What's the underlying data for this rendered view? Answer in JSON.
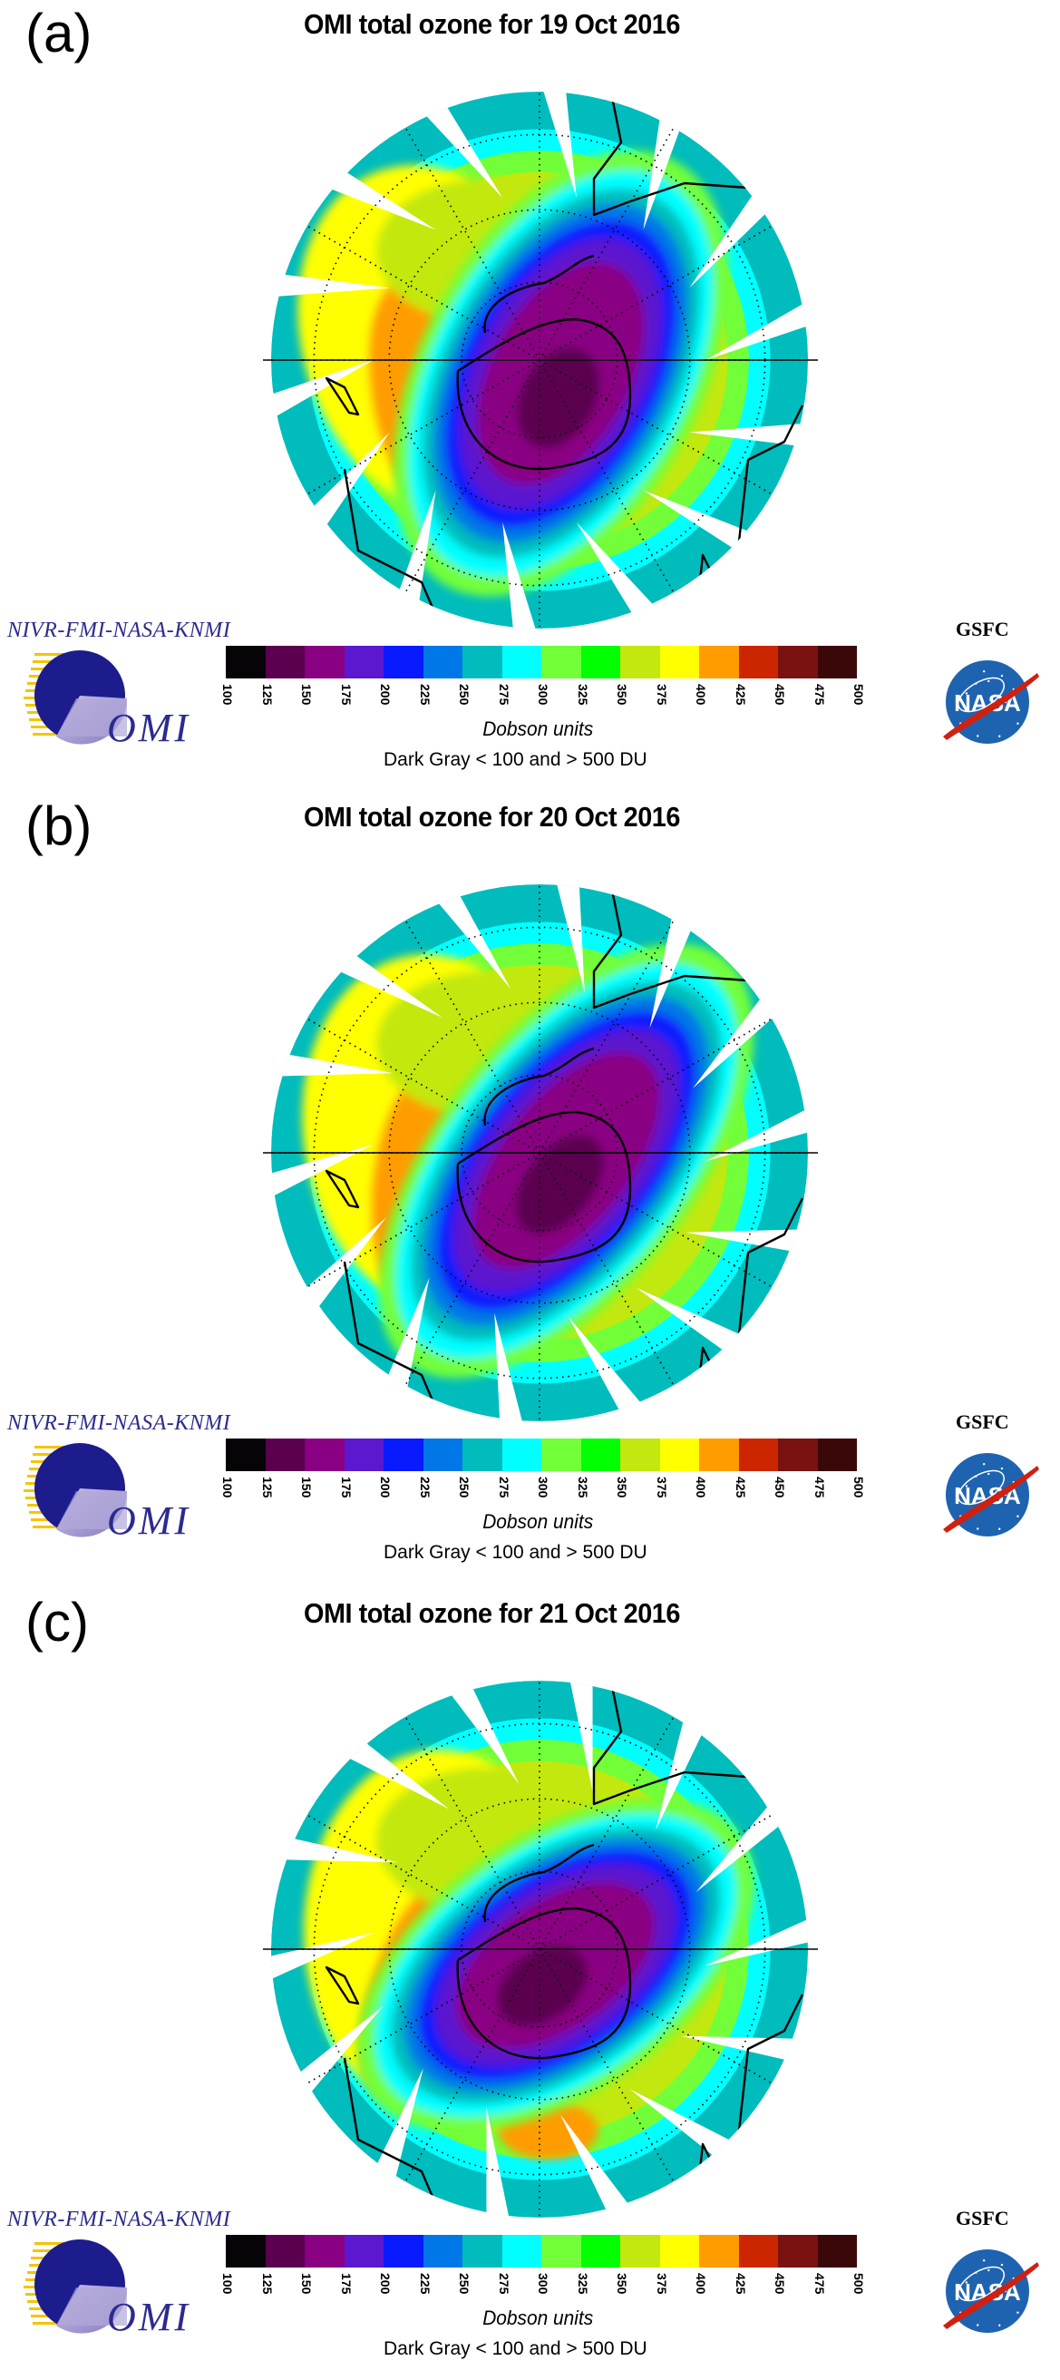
{
  "panels": [
    {
      "label": "(a)",
      "title": "OMI total ozone for 19 Oct 2016",
      "date": "19 Oct 2016",
      "hole": {
        "rx": 0.36,
        "ry": 0.62,
        "angle": 28,
        "dx": 0.08,
        "dy": 0.05
      },
      "core_min_category": "125-150"
    },
    {
      "label": "(b)",
      "title": "OMI total ozone for 20 Oct 2016",
      "date": "20 Oct 2016",
      "hole": {
        "rx": 0.33,
        "ry": 0.66,
        "angle": 38,
        "dx": 0.1,
        "dy": 0.03
      },
      "core_min_category": "125-150"
    },
    {
      "label": "(c)",
      "title": "OMI total ozone for  21 Oct 2016",
      "date": "21 Oct 2016",
      "hole": {
        "rx": 0.33,
        "ry": 0.58,
        "angle": 55,
        "dx": 0.06,
        "dy": 0.06
      },
      "core_min_category": "125-150"
    }
  ],
  "legend": {
    "credit": "NIVR-FMI-NASA-KNMI",
    "omi_logo_text": "OMI",
    "units_label": "Dobson units",
    "note": "Dark Gray < 100 and > 500 DU",
    "agency": "GSFC",
    "nasa_logo_text": "NASA",
    "ticks": [
      "100",
      "125",
      "150",
      "175",
      "200",
      "225",
      "250",
      "275",
      "300",
      "325",
      "350",
      "375",
      "400",
      "425",
      "450",
      "475",
      "500"
    ],
    "colors": [
      "#060406",
      "#5a004f",
      "#8a0082",
      "#5b18cf",
      "#0a1aff",
      "#0077e6",
      "#00bcbc",
      "#00ffff",
      "#72ff3a",
      "#00ff00",
      "#c2e80f",
      "#ffff00",
      "#ff9c00",
      "#cc2600",
      "#7a1212",
      "#3a0808"
    ]
  },
  "chart_data": {
    "type": "heatmap",
    "title": "OMI total ozone (Southern Hemisphere polar projection)",
    "dates": [
      "19 Oct 2016",
      "20 Oct 2016",
      "21 Oct 2016"
    ],
    "colorbar": {
      "label": "Dobson units",
      "range": [
        100,
        500
      ],
      "step": 25,
      "note": "Dark Gray < 100 and > 500 DU"
    },
    "observations": {
      "ozone_hole_min_DU_range": [
        125,
        150
      ],
      "outer_ring_DU_range": [
        250,
        275
      ],
      "collar_max_DU_range": [
        400,
        425
      ]
    }
  }
}
